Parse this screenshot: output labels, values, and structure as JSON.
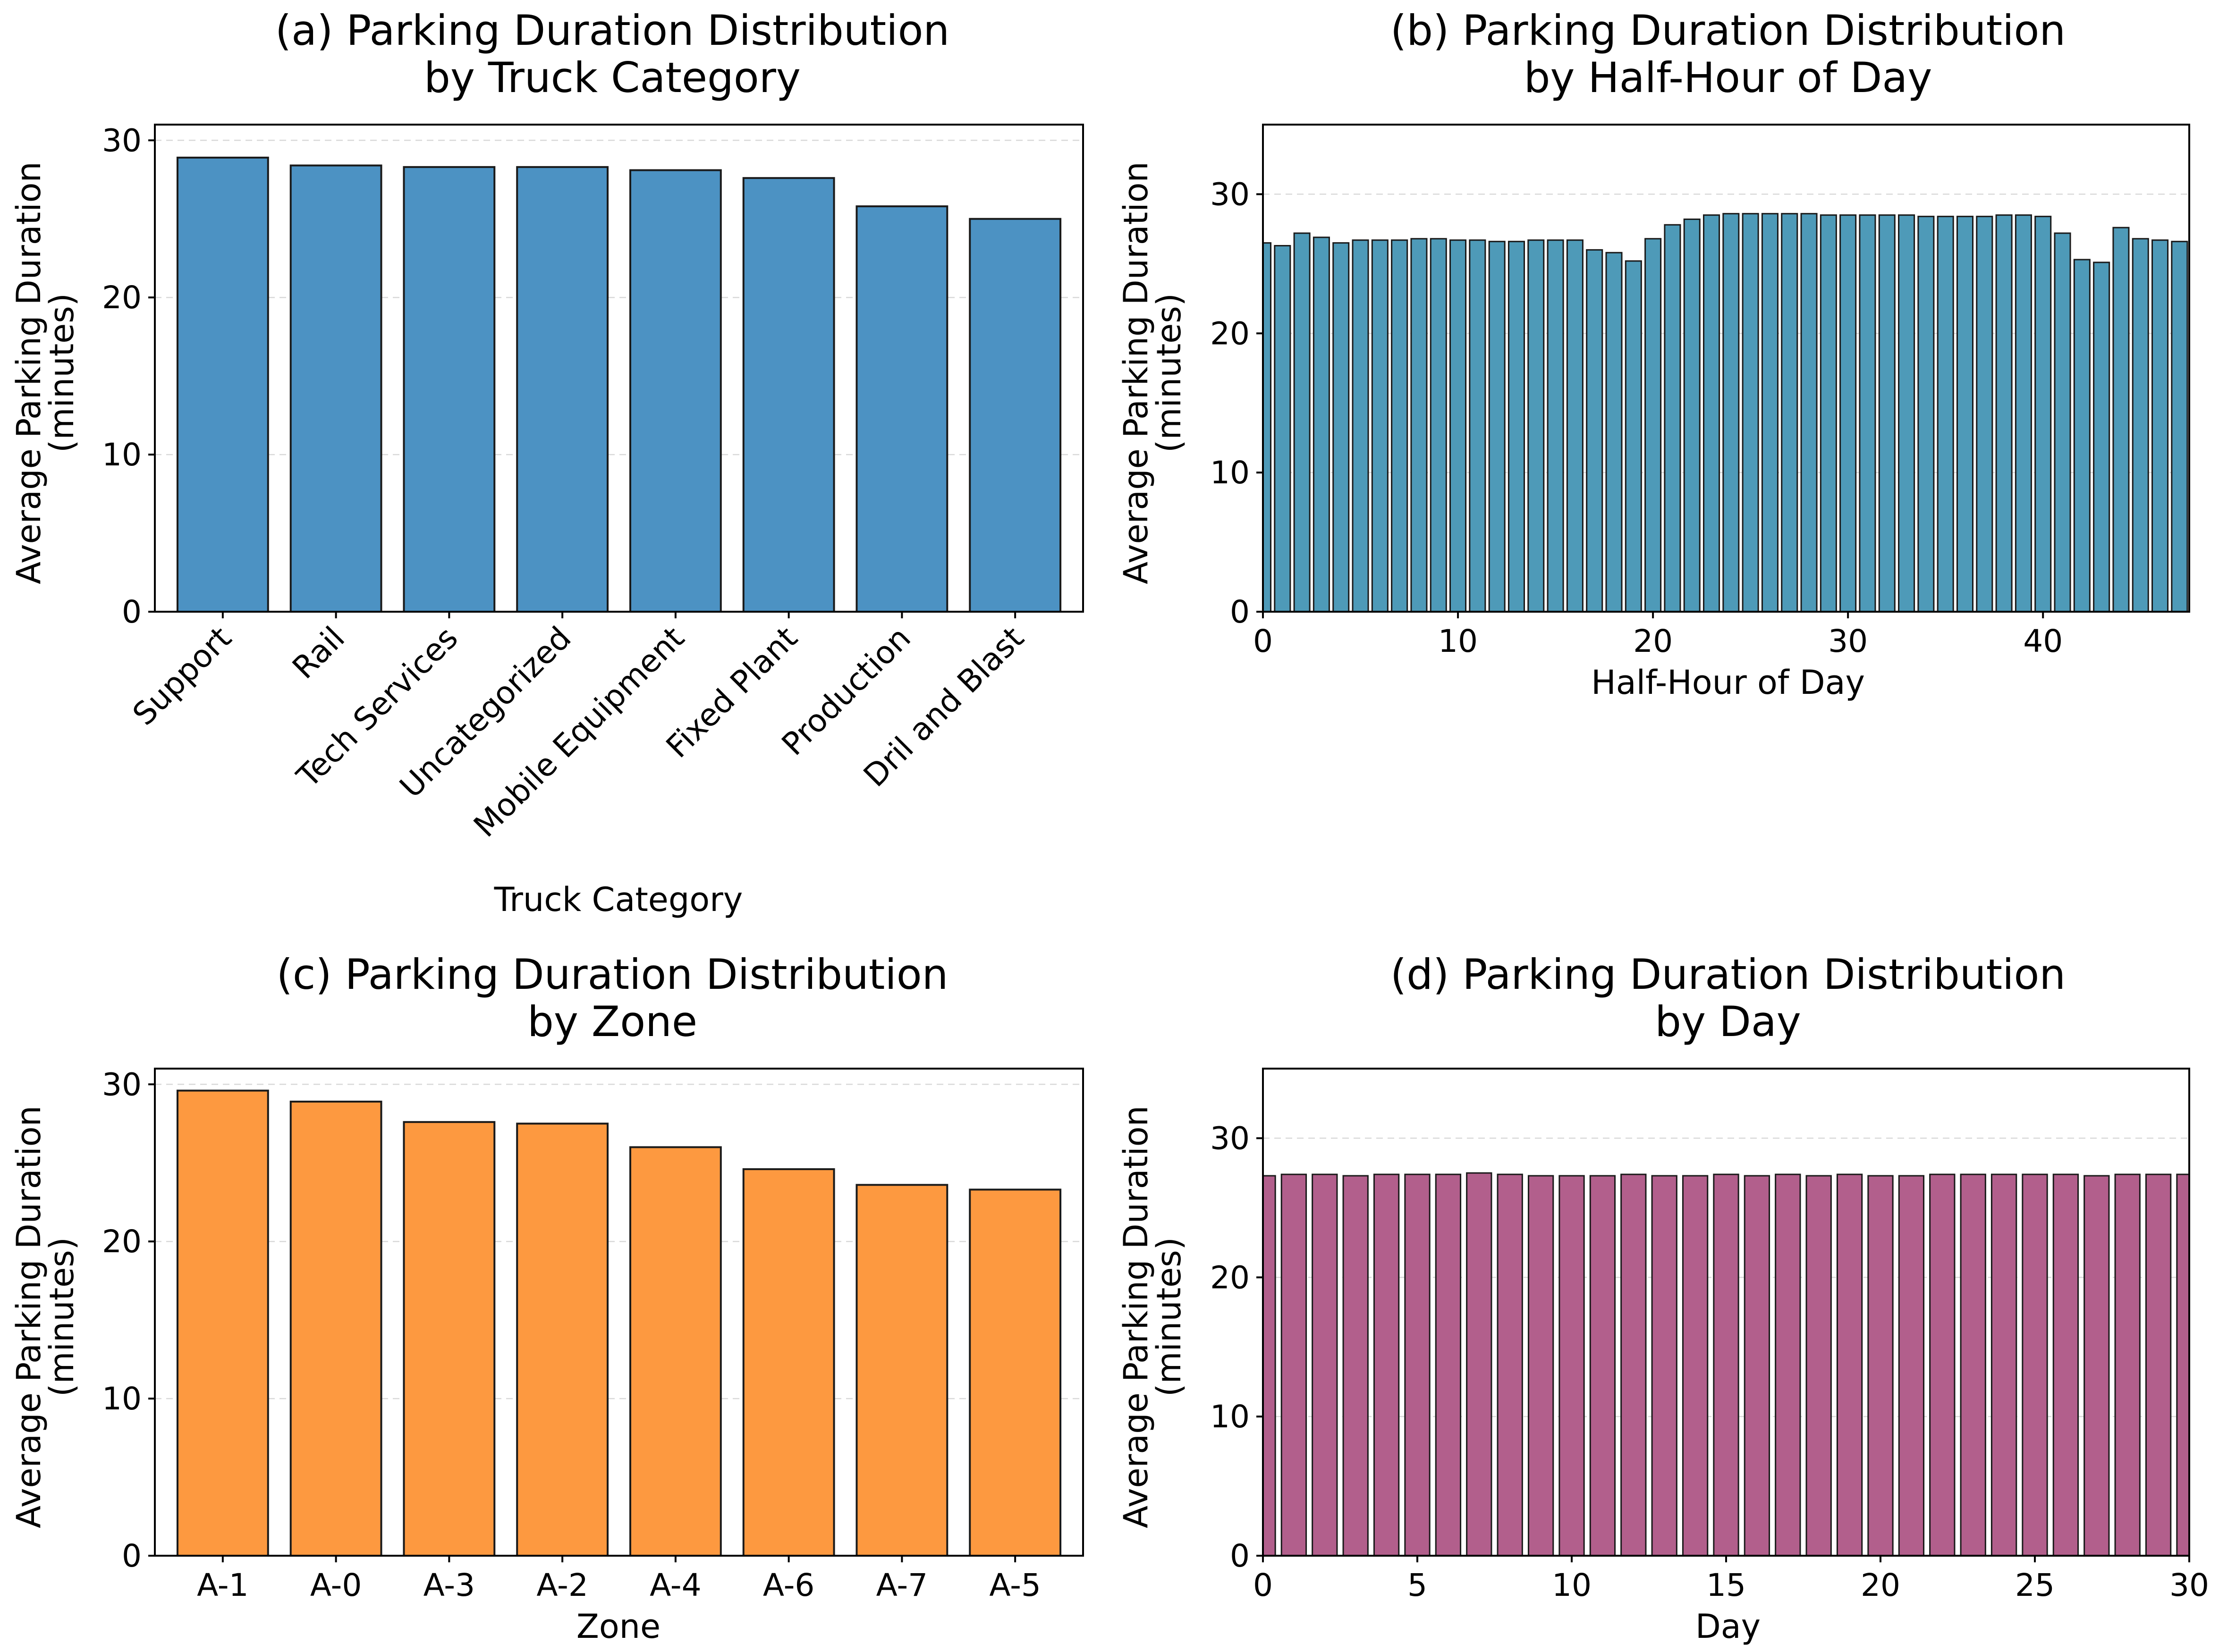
{
  "chart_data": [
    {
      "id": "a",
      "type": "bar",
      "title": [
        "(a) Parking Duration Distribution",
        "by Truck Category"
      ],
      "xlabel": "Truck Category",
      "ylabel": [
        "Average Parking Duration",
        "(minutes)"
      ],
      "categories": [
        "Support",
        "Rail",
        "Tech Services",
        "Uncategorized",
        "Mobile Equipment",
        "Fixed Plant",
        "Production",
        "Dril and Blast"
      ],
      "values": [
        28.9,
        28.4,
        28.3,
        28.3,
        28.1,
        27.6,
        25.8,
        25.0
      ],
      "ylim": [
        0,
        31
      ],
      "yticks": [
        0,
        10,
        20,
        30
      ],
      "grid": true,
      "color": "#4c92c3"
    },
    {
      "id": "b",
      "type": "bar",
      "title": [
        "(b) Parking Duration Distribution",
        "by Half-Hour of Day"
      ],
      "xlabel": "Half-Hour of Day",
      "ylabel": [
        "Average Parking Duration",
        "(minutes)"
      ],
      "x": [
        0,
        1,
        2,
        3,
        4,
        5,
        6,
        7,
        8,
        9,
        10,
        11,
        12,
        13,
        14,
        15,
        16,
        17,
        18,
        19,
        20,
        21,
        22,
        23,
        24,
        25,
        26,
        27,
        28,
        29,
        30,
        31,
        32,
        33,
        34,
        35,
        36,
        37,
        38,
        39,
        40,
        41,
        42,
        43,
        44,
        45,
        46,
        47
      ],
      "values": [
        26.5,
        26.3,
        27.2,
        26.9,
        26.5,
        26.7,
        26.7,
        26.7,
        26.8,
        26.8,
        26.7,
        26.7,
        26.6,
        26.6,
        26.7,
        26.7,
        26.7,
        26.0,
        25.8,
        25.2,
        26.8,
        27.8,
        28.2,
        28.5,
        28.6,
        28.6,
        28.6,
        28.6,
        28.6,
        28.5,
        28.5,
        28.5,
        28.5,
        28.5,
        28.4,
        28.4,
        28.4,
        28.4,
        28.5,
        28.5,
        28.4,
        27.2,
        25.3,
        25.1,
        27.6,
        26.8,
        26.7,
        26.6
      ],
      "xlim": [
        0,
        47.5
      ],
      "xticks": [
        0,
        10,
        20,
        30,
        40
      ],
      "ylim": [
        0,
        35
      ],
      "yticks": [
        0,
        10,
        20,
        30
      ],
      "grid": true,
      "color": "#4e9ab8"
    },
    {
      "id": "c",
      "type": "bar",
      "title": [
        "(c) Parking Duration Distribution",
        "by Zone"
      ],
      "xlabel": "Zone",
      "ylabel": [
        "Average Parking Duration",
        "(minutes)"
      ],
      "categories": [
        "A-1",
        "A-0",
        "A-3",
        "A-2",
        "A-4",
        "A-6",
        "A-7",
        "A-5"
      ],
      "values": [
        29.6,
        28.9,
        27.6,
        27.5,
        26.0,
        24.6,
        23.6,
        23.3
      ],
      "ylim": [
        0,
        31
      ],
      "yticks": [
        0,
        10,
        20,
        30
      ],
      "grid": true,
      "color": "#fd9940"
    },
    {
      "id": "d",
      "type": "bar",
      "title": [
        "(d) Parking Duration Distribution",
        "by Day"
      ],
      "xlabel": "Day",
      "ylabel": [
        "Average Parking Duration",
        "(minutes)"
      ],
      "x": [
        0,
        1,
        2,
        3,
        4,
        5,
        6,
        7,
        8,
        9,
        10,
        11,
        12,
        13,
        14,
        15,
        16,
        17,
        18,
        19,
        20,
        21,
        22,
        23,
        24,
        25,
        26,
        27,
        28,
        29,
        30
      ],
      "values": [
        27.3,
        27.4,
        27.4,
        27.3,
        27.4,
        27.4,
        27.4,
        27.5,
        27.4,
        27.3,
        27.3,
        27.3,
        27.4,
        27.3,
        27.3,
        27.4,
        27.3,
        27.4,
        27.3,
        27.4,
        27.3,
        27.3,
        27.4,
        27.4,
        27.4,
        27.4,
        27.4,
        27.3,
        27.4,
        27.4,
        27.4
      ],
      "xlim": [
        0,
        30
      ],
      "xticks": [
        0,
        5,
        10,
        15,
        20,
        25,
        30
      ],
      "ylim": [
        0,
        35
      ],
      "yticks": [
        0,
        10,
        20,
        30
      ],
      "grid": true,
      "color": "#b25f8c"
    }
  ]
}
